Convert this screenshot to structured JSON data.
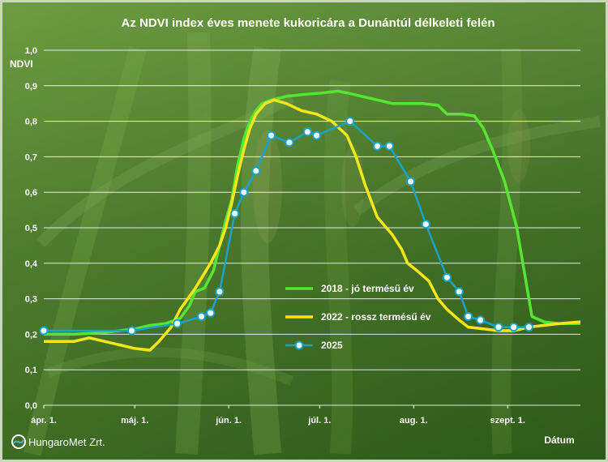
{
  "chart_data": {
    "type": "line",
    "title": "Az NDVI index éves menete kukoricára a Dunántúl délkeleti felén",
    "ylabel": "NDVI",
    "xlabel": "Dátum",
    "ylim": [
      0.0,
      1.0
    ],
    "yticks": [
      "0,0",
      "0,1",
      "0,2",
      "0,3",
      "0,4",
      "0,5",
      "0,6",
      "0,7",
      "0,8",
      "0,9",
      "1,0"
    ],
    "xticks": [
      "ápr. 1.",
      "máj. 1.",
      "jún. 1.",
      "júl. 1.",
      "aug. 1.",
      "szept. 1."
    ],
    "xlim_days": [
      0,
      177
    ],
    "xtick_days": [
      0,
      30,
      61,
      91,
      122,
      153
    ],
    "grid": true,
    "legend_position": "center",
    "series": [
      {
        "name": "2018 - jó termésű év",
        "color": "#55e632",
        "marker": false,
        "points": [
          [
            0,
            0.2
          ],
          [
            10,
            0.2
          ],
          [
            20,
            0.205
          ],
          [
            30,
            0.215
          ],
          [
            35,
            0.225
          ],
          [
            40,
            0.23
          ],
          [
            45,
            0.245
          ],
          [
            48,
            0.28
          ],
          [
            50,
            0.32
          ],
          [
            53,
            0.33
          ],
          [
            56,
            0.38
          ],
          [
            58,
            0.45
          ],
          [
            60,
            0.52
          ],
          [
            62,
            0.58
          ],
          [
            64,
            0.68
          ],
          [
            66,
            0.75
          ],
          [
            68,
            0.8
          ],
          [
            70,
            0.83
          ],
          [
            72,
            0.85
          ],
          [
            75,
            0.86
          ],
          [
            80,
            0.87
          ],
          [
            85,
            0.875
          ],
          [
            92,
            0.88
          ],
          [
            97,
            0.885
          ],
          [
            100,
            0.88
          ],
          [
            105,
            0.87
          ],
          [
            110,
            0.86
          ],
          [
            115,
            0.85
          ],
          [
            120,
            0.85
          ],
          [
            125,
            0.85
          ],
          [
            130,
            0.845
          ],
          [
            133,
            0.82
          ],
          [
            138,
            0.82
          ],
          [
            142,
            0.815
          ],
          [
            145,
            0.78
          ],
          [
            148,
            0.72
          ],
          [
            152,
            0.63
          ],
          [
            156,
            0.5
          ],
          [
            159,
            0.35
          ],
          [
            161,
            0.25
          ],
          [
            165,
            0.235
          ],
          [
            170,
            0.23
          ],
          [
            177,
            0.23
          ]
        ]
      },
      {
        "name": "2022 - rossz termésű év",
        "color": "#f5e61a",
        "marker": false,
        "points": [
          [
            0,
            0.18
          ],
          [
            10,
            0.18
          ],
          [
            15,
            0.19
          ],
          [
            20,
            0.18
          ],
          [
            25,
            0.17
          ],
          [
            30,
            0.16
          ],
          [
            35,
            0.155
          ],
          [
            38,
            0.18
          ],
          [
            42,
            0.22
          ],
          [
            45,
            0.27
          ],
          [
            50,
            0.33
          ],
          [
            55,
            0.4
          ],
          [
            58,
            0.45
          ],
          [
            60,
            0.5
          ],
          [
            62,
            0.57
          ],
          [
            64,
            0.65
          ],
          [
            66,
            0.72
          ],
          [
            68,
            0.78
          ],
          [
            70,
            0.82
          ],
          [
            73,
            0.85
          ],
          [
            76,
            0.86
          ],
          [
            80,
            0.85
          ],
          [
            85,
            0.83
          ],
          [
            90,
            0.82
          ],
          [
            95,
            0.8
          ],
          [
            100,
            0.76
          ],
          [
            103,
            0.7
          ],
          [
            106,
            0.62
          ],
          [
            110,
            0.53
          ],
          [
            115,
            0.48
          ],
          [
            118,
            0.44
          ],
          [
            120,
            0.4
          ],
          [
            123,
            0.38
          ],
          [
            127,
            0.35
          ],
          [
            130,
            0.3
          ],
          [
            133,
            0.27
          ],
          [
            137,
            0.24
          ],
          [
            140,
            0.22
          ],
          [
            145,
            0.215
          ],
          [
            150,
            0.21
          ],
          [
            155,
            0.21
          ],
          [
            160,
            0.22
          ],
          [
            165,
            0.225
          ],
          [
            170,
            0.23
          ],
          [
            177,
            0.235
          ]
        ]
      },
      {
        "name": "2025",
        "color": "#1aa3c8",
        "marker": true,
        "points": [
          [
            0,
            0.21
          ],
          [
            29,
            0.21
          ],
          [
            44,
            0.23
          ],
          [
            52,
            0.25
          ],
          [
            55,
            0.26
          ],
          [
            58,
            0.32
          ],
          [
            63,
            0.54
          ],
          [
            66,
            0.6
          ],
          [
            70,
            0.66
          ],
          [
            75,
            0.76
          ],
          [
            81,
            0.74
          ],
          [
            87,
            0.77
          ],
          [
            90,
            0.76
          ],
          [
            101,
            0.8
          ],
          [
            110,
            0.73
          ],
          [
            114,
            0.73
          ],
          [
            121,
            0.63
          ],
          [
            126,
            0.51
          ],
          [
            133,
            0.36
          ],
          [
            137,
            0.32
          ],
          [
            140,
            0.25
          ],
          [
            144,
            0.24
          ],
          [
            150,
            0.22
          ],
          [
            155,
            0.22
          ],
          [
            160,
            0.22
          ]
        ]
      }
    ]
  },
  "footer": {
    "logo_text": "HungaroMet Zrt."
  },
  "colors": {
    "frame_background": "#c9d8bf",
    "plot_background_top": "#4f7d2c",
    "plot_background_bottom": "#2c5418",
    "gridline": "#ffffff"
  }
}
